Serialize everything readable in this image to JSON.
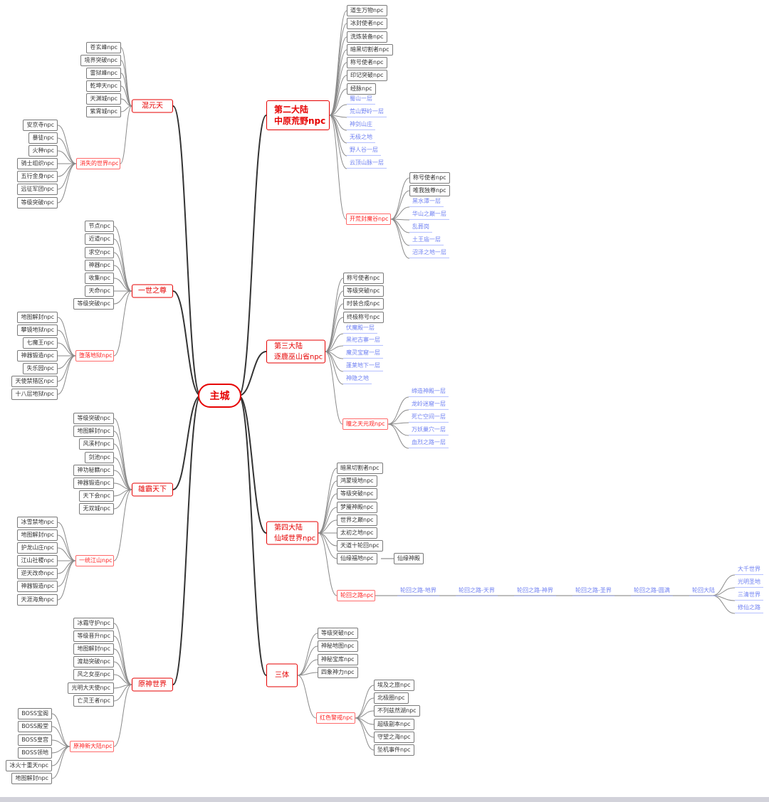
{
  "root": "主城",
  "colors": {
    "branch": "#e60000",
    "group": "#ff2222",
    "link": "#6f80f2",
    "line": "#333333"
  },
  "branches": [
    {
      "label": "混元天",
      "label2": "",
      "items": [
        "苍玄峰npc",
        "境界突破npc",
        "雷狱峰npc",
        "乾坤天npc",
        "天渊城npc",
        "紫霄城npc"
      ],
      "links": [],
      "groups": [
        {
          "label": "消失的世界npc",
          "items": [
            "安京寺npc",
            "暴徒npc",
            "火种npc",
            "骑士组织npc",
            "五行金身npc",
            "远征军团npc",
            "等级突破npc"
          ],
          "links": []
        }
      ]
    },
    {
      "label": "一世之尊",
      "label2": "",
      "items": [
        "节点npc",
        "近道npc",
        "求空npc",
        "神器npc",
        "收集npc",
        "天命npc",
        "等级突破npc"
      ],
      "links": [],
      "groups": [
        {
          "label": "堕落地狱npc",
          "items": [
            "地图解封npc",
            "攀镜地狱npc",
            "七魔王npc",
            "神器锻造npc",
            "失乐园npc",
            "天使禁猎区npc",
            "十八层地狱npc"
          ],
          "links": []
        }
      ]
    },
    {
      "label": "雄霸天下",
      "label2": "",
      "items": [
        "等级突破npc",
        "地图解封npc",
        "风溪村npc",
        "剑池npc",
        "神功秘籍npc",
        "神器锻造npc",
        "天下会npc",
        "无双城npc"
      ],
      "links": [],
      "groups": [
        {
          "label": "一统江山npc",
          "items": [
            "冰雪禁地npc",
            "地图解封npc",
            "护龙山庄npc",
            "江山社稷npc",
            "逆天改命npc",
            "神器锻造npc",
            "天涯海角npc"
          ],
          "links": []
        }
      ]
    },
    {
      "label": "原神世界",
      "label2": "",
      "items": [
        "冰霜守护npc",
        "等级晋升npc",
        "地图解封npc",
        "渡劫突破npc",
        "风之女巫npc",
        "光明大天使npc",
        "亡灵王者npc"
      ],
      "links": [],
      "groups": [
        {
          "label": "原神新大陆npc",
          "items": [
            "BOSS宝阁",
            "BOSS殿堂",
            "BOSS皇宫",
            "BOSS领地",
            "冰火十重天npc",
            "地图解封npc"
          ],
          "links": []
        }
      ]
    },
    {
      "label": "第二大陆",
      "label2": "中原荒野npc",
      "items": [
        "道生万物npc",
        "冰封使者npc",
        "洗炼装备npc",
        "暗黑切割者npc",
        "称号使者npc",
        "印记突破npc",
        "经脉npc"
      ],
      "links": [
        "蜀山一层",
        "荒山野岭一层",
        "神剑山庄",
        "无极之地",
        "野人谷一层",
        "云顶山脉一层"
      ],
      "groups": [
        {
          "label": "开荒封魔谷npc",
          "items": [
            "称号使者npc",
            "唯我独尊npc"
          ],
          "links": [
            "黑水潭一层",
            "华山之巅一层",
            "乱葬岗",
            "土王庙一层",
            "沼泽之地一层"
          ]
        }
      ]
    },
    {
      "label": "第三大陆",
      "label2": "逐鹿巫山省npc",
      "items": [
        "称号使者npc",
        "等级突破npc",
        "时装合成npc",
        "终极称号npc"
      ],
      "links": [
        "伏魔殿一层",
        "黑祀古寨一层",
        "魔灵宝窟一层",
        "蓬莱地下一层",
        "神隐之地"
      ],
      "groups": [
        {
          "label": "瞳之天元观npc",
          "items": [],
          "links": [
            "缔造神殿一层",
            "龙岭迷窟一层",
            "死亡空间一层",
            "万妖巢穴一层",
            "血烈之路一层"
          ]
        }
      ]
    },
    {
      "label": "第四大陆",
      "label2": "仙域世界npc",
      "items": [
        "暗黑切割者npc",
        "鸿蒙境地npc",
        "等级突破npc",
        "梦魇神殿npc",
        "世界之巅npc",
        "太初之地npc",
        "天道十轮回npc",
        "仙缘福地npc"
      ],
      "links": [],
      "attached": {
        "to": "仙缘福地npc",
        "label": "仙缘神殿"
      },
      "groups": [
        {
          "label": "轮回之路npc",
          "items": [],
          "links": [],
          "chain": [
            "轮回之路-地界",
            "轮回之路-天界",
            "轮回之路-神界",
            "轮回之路-圣界",
            "轮回之路-圆满",
            "轮回大陆"
          ],
          "tail": [
            "大千世界",
            "光明圣地",
            "三清世界",
            "修仙之路"
          ]
        }
      ]
    },
    {
      "label": "三体",
      "label2": "",
      "items": [
        "等级突破npc",
        "神秘地图npc",
        "神秘宝库npc",
        "四象神力npc"
      ],
      "links": [],
      "groups": [
        {
          "label": "红色警戒npc",
          "items": [
            "埃及之旅npc",
            "北极圈npc",
            "不列兹然湖npc",
            "超级副本npc",
            "守望之海npc",
            "坠机事件npc"
          ],
          "links": []
        }
      ]
    }
  ]
}
